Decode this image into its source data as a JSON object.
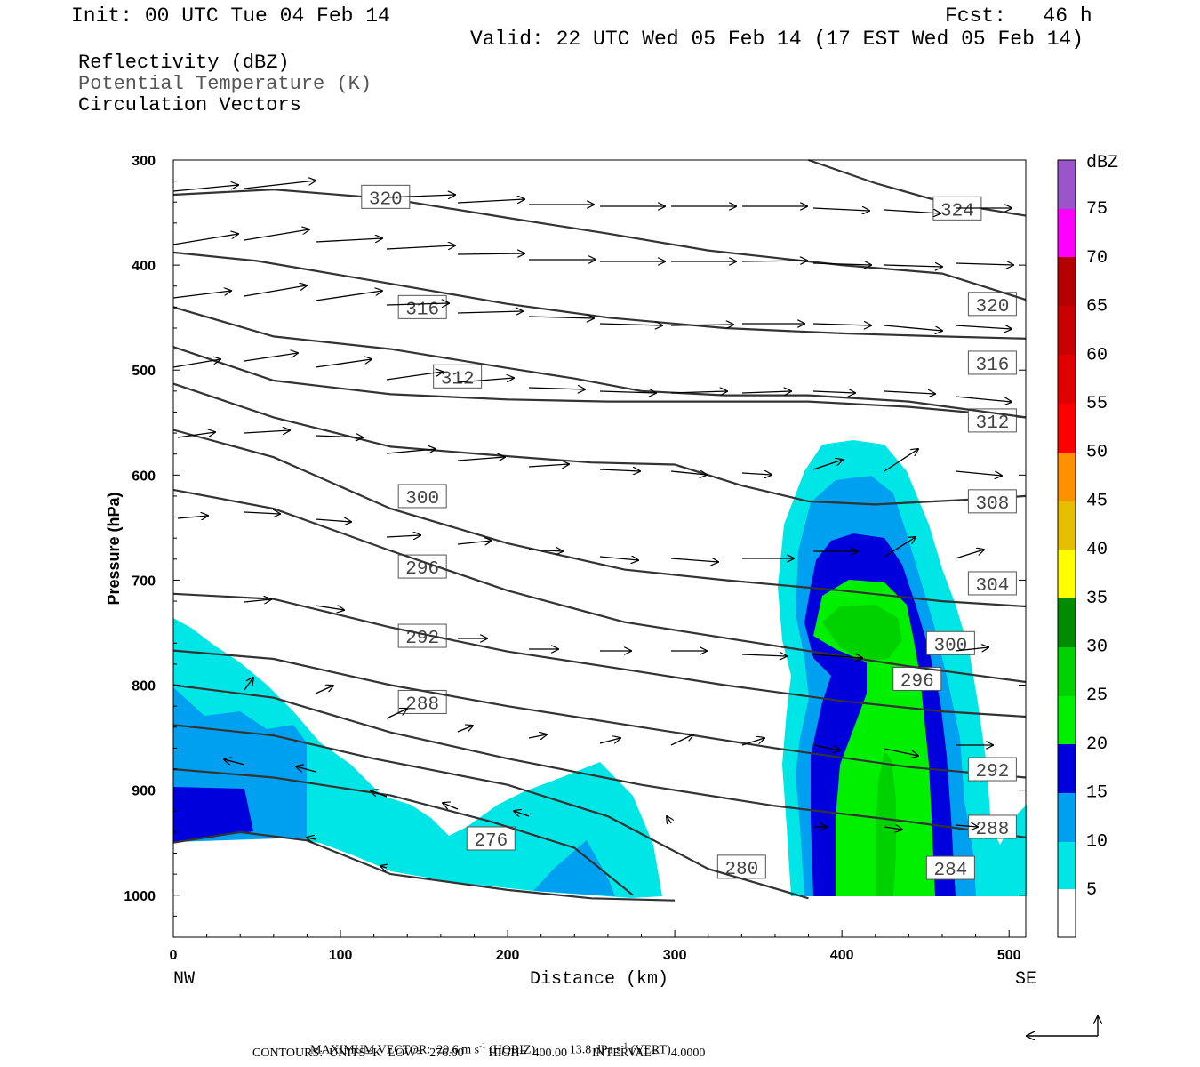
{
  "header": {
    "init": "Init: 00 UTC Tue 04 Feb 14",
    "fcst": "Fcst:   46 h",
    "valid": "Valid: 22 UTC Wed 05 Feb 14 (17 EST Wed 05 Feb 14)"
  },
  "fields": {
    "reflectivity": "Reflectivity (dBZ)",
    "theta": "Potential Temperature (K)",
    "vectors": "Circulation Vectors"
  },
  "footer": {
    "maxvec_label": "MAXIMUM VECTOR:",
    "maxvec_horiz": "29.6 m s",
    "maxvec_horiz_exp": "-1",
    "maxvec_horiz_tail": "(HORIZ)",
    "maxvec_vert": "13.8 dPa s",
    "maxvec_vert_exp": "-1",
    "maxvec_vert_tail": "(VERT)",
    "contours": "CONTOURS:  UNITS=K  LOW=  276.00        HIGH=  400.00        INTERVAL=    4.0000"
  },
  "colors": {
    "c5": "#00e6e6",
    "c10": "#00a0f0",
    "c15": "#0000dc",
    "c20": "#00f000",
    "c25": "#00d200",
    "c30": "#008c00",
    "c35": "#ffff00",
    "c40": "#e6be00",
    "c45": "#ff9100",
    "c50": "#ff0000",
    "c55": "#e10000",
    "c60": "#c80000",
    "c65": "#b40000",
    "c70": "#ff00ff",
    "c75": "#9955c9",
    "contour": "#333333"
  },
  "chart_data": {
    "type": "cross-section",
    "xlabel": "Distance (km)",
    "ylabel": "Pressure (hPa)",
    "xlim": [
      0,
      510
    ],
    "ylim": [
      1040,
      300
    ],
    "y_scale": "linear",
    "x_ticks": [
      "0",
      "100",
      "200",
      "300",
      "400",
      "500"
    ],
    "x_tick_values": [
      0,
      100,
      200,
      300,
      400,
      500
    ],
    "y_ticks": [
      "300",
      "400",
      "500",
      "600",
      "700",
      "800",
      "900",
      "1000"
    ],
    "y_tick_values": [
      300,
      400,
      500,
      600,
      700,
      800,
      900,
      1000
    ],
    "x_end_labels": {
      "left": "NW",
      "right": "SE"
    },
    "colorbar": {
      "title": "dBZ",
      "levels": [
        "5",
        "10",
        "15",
        "20",
        "25",
        "30",
        "35",
        "40",
        "45",
        "50",
        "55",
        "60",
        "65",
        "70",
        "75"
      ],
      "level_values": [
        5,
        10,
        15,
        20,
        25,
        30,
        35,
        40,
        45,
        50,
        55,
        60,
        65,
        70,
        75
      ]
    },
    "theta_contours": [
      {
        "label": "276",
        "lx": 190,
        "lp": 946,
        "points": [
          [
            0,
            950
          ],
          [
            40,
            940
          ],
          [
            80,
            948
          ],
          [
            130,
            980
          ],
          [
            200,
            995
          ],
          [
            250,
            1003
          ],
          [
            300,
            1005
          ]
        ]
      },
      {
        "label": "280",
        "lx": 340,
        "lp": 973,
        "points": [
          [
            0,
            880
          ],
          [
            60,
            888
          ],
          [
            130,
            905
          ],
          [
            190,
            930
          ],
          [
            240,
            955
          ],
          [
            275,
            1000
          ]
        ]
      },
      {
        "label": "284",
        "lx": 465,
        "lp": 974,
        "points": [
          [
            0,
            838
          ],
          [
            60,
            848
          ],
          [
            120,
            870
          ],
          [
            200,
            895
          ],
          [
            260,
            925
          ],
          [
            320,
            975
          ],
          [
            380,
            1003
          ]
        ]
      },
      {
        "label": "288",
        "lx": 490,
        "lp": 935,
        "points": [
          [
            0,
            800
          ],
          [
            60,
            812
          ],
          [
            130,
            845
          ],
          [
            200,
            870
          ],
          [
            280,
            895
          ],
          [
            360,
            915
          ],
          [
            440,
            930
          ],
          [
            510,
            945
          ]
        ]
      },
      {
        "label": "288",
        "lx": 149,
        "lp": 816,
        "points": []
      },
      {
        "label": "292",
        "lx": 490,
        "lp": 880,
        "points": [
          [
            0,
            767
          ],
          [
            60,
            775
          ],
          [
            130,
            800
          ],
          [
            200,
            820
          ],
          [
            280,
            840
          ],
          [
            360,
            860
          ],
          [
            440,
            878
          ],
          [
            510,
            888
          ]
        ]
      },
      {
        "label": "292",
        "lx": 149,
        "lp": 753,
        "points": []
      },
      {
        "label": "296",
        "lx": 445,
        "lp": 794,
        "points": [
          [
            0,
            713
          ],
          [
            60,
            718
          ],
          [
            130,
            745
          ],
          [
            200,
            768
          ],
          [
            270,
            785
          ],
          [
            330,
            800
          ],
          [
            400,
            815
          ],
          [
            460,
            825
          ],
          [
            510,
            830
          ]
        ]
      },
      {
        "label": "296",
        "lx": 149,
        "lp": 687,
        "points": []
      },
      {
        "label": "300",
        "lx": 465,
        "lp": 760,
        "points": [
          [
            0,
            614
          ],
          [
            60,
            632
          ],
          [
            130,
            672
          ],
          [
            200,
            710
          ],
          [
            270,
            740
          ],
          [
            330,
            755
          ],
          [
            390,
            770
          ],
          [
            440,
            782
          ],
          [
            510,
            797
          ]
        ]
      },
      {
        "label": "300",
        "lx": 149,
        "lp": 620,
        "points": []
      },
      {
        "label": "304",
        "lx": 490,
        "lp": 703,
        "points": [
          [
            0,
            557
          ],
          [
            60,
            583
          ],
          [
            130,
            632
          ],
          [
            200,
            665
          ],
          [
            270,
            690
          ],
          [
            330,
            700
          ],
          [
            400,
            710
          ],
          [
            460,
            720
          ],
          [
            510,
            725
          ]
        ]
      },
      {
        "label": "308",
        "lx": 490,
        "lp": 625,
        "points": [
          [
            0,
            513
          ],
          [
            60,
            545
          ],
          [
            130,
            573
          ],
          [
            200,
            582
          ],
          [
            250,
            588
          ],
          [
            300,
            590
          ],
          [
            340,
            610
          ],
          [
            380,
            625
          ],
          [
            420,
            628
          ],
          [
            480,
            623
          ],
          [
            510,
            620
          ]
        ]
      },
      {
        "label": "312",
        "lx": 490,
        "lp": 548,
        "points": [
          [
            0,
            478
          ],
          [
            60,
            510
          ],
          [
            130,
            523
          ],
          [
            200,
            528
          ],
          [
            260,
            530
          ],
          [
            320,
            530
          ],
          [
            380,
            530
          ],
          [
            440,
            535
          ],
          [
            510,
            545
          ]
        ]
      },
      {
        "label": "312",
        "lx": 170,
        "lp": 506,
        "points": []
      },
      {
        "label": "316",
        "lx": 490,
        "lp": 493,
        "points": [
          [
            0,
            440
          ],
          [
            60,
            468
          ],
          [
            130,
            480
          ],
          [
            200,
            498
          ],
          [
            240,
            508
          ],
          [
            280,
            520
          ],
          [
            330,
            524
          ],
          [
            380,
            524
          ],
          [
            440,
            530
          ],
          [
            510,
            545
          ]
        ]
      },
      {
        "label": "316",
        "lx": 149,
        "lp": 440,
        "points": []
      },
      {
        "label": "320",
        "lx": 490,
        "lp": 437,
        "points": [
          [
            0,
            388
          ],
          [
            50,
            396
          ],
          [
            120,
            415
          ],
          [
            200,
            437
          ],
          [
            260,
            450
          ],
          [
            330,
            460
          ],
          [
            400,
            465
          ],
          [
            460,
            468
          ],
          [
            510,
            470
          ]
        ]
      },
      {
        "label": "320",
        "lx": 127,
        "lp": 335,
        "points": [
          [
            0,
            333
          ],
          [
            60,
            328
          ],
          [
            130,
            337
          ],
          [
            200,
            355
          ],
          [
            260,
            370
          ],
          [
            320,
            386
          ],
          [
            400,
            400
          ],
          [
            460,
            408
          ],
          [
            510,
            433
          ]
        ]
      },
      {
        "label": "324",
        "lx": 469,
        "lp": 346,
        "points": [
          [
            380,
            300
          ],
          [
            420,
            322
          ],
          [
            460,
            340
          ],
          [
            510,
            353
          ]
        ]
      }
    ]
  }
}
